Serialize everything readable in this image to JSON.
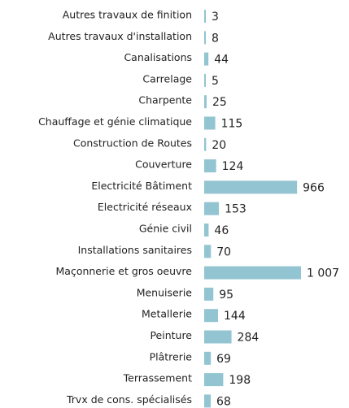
{
  "chart_data": {
    "type": "bar",
    "orientation": "horizontal",
    "color": "#93c4d2",
    "categories": [
      "Autres travaux de finition",
      "Autres travaux d'installation",
      "Canalisations",
      "Carrelage",
      "Charpente",
      "Chauffage et génie climatique",
      "Construction de Routes",
      "Couverture",
      "Electricité Bâtiment",
      "Electricité réseaux",
      "Génie civil",
      "Installations sanitaires",
      "Maçonnerie et gros oeuvre",
      "Menuiserie",
      "Metallerie",
      "Peinture",
      "Plâtrerie",
      "Terrassement",
      "Trvx de cons. spécialisés"
    ],
    "values": [
      3,
      8,
      44,
      5,
      25,
      115,
      20,
      124,
      966,
      153,
      46,
      70,
      1007,
      95,
      144,
      284,
      69,
      198,
      68
    ],
    "value_labels": [
      "3",
      "8",
      "44",
      "5",
      "25",
      "115",
      "20",
      "124",
      "966",
      "153",
      "46",
      "70",
      "1 007",
      "95",
      "144",
      "284",
      "69",
      "198",
      "68"
    ]
  }
}
